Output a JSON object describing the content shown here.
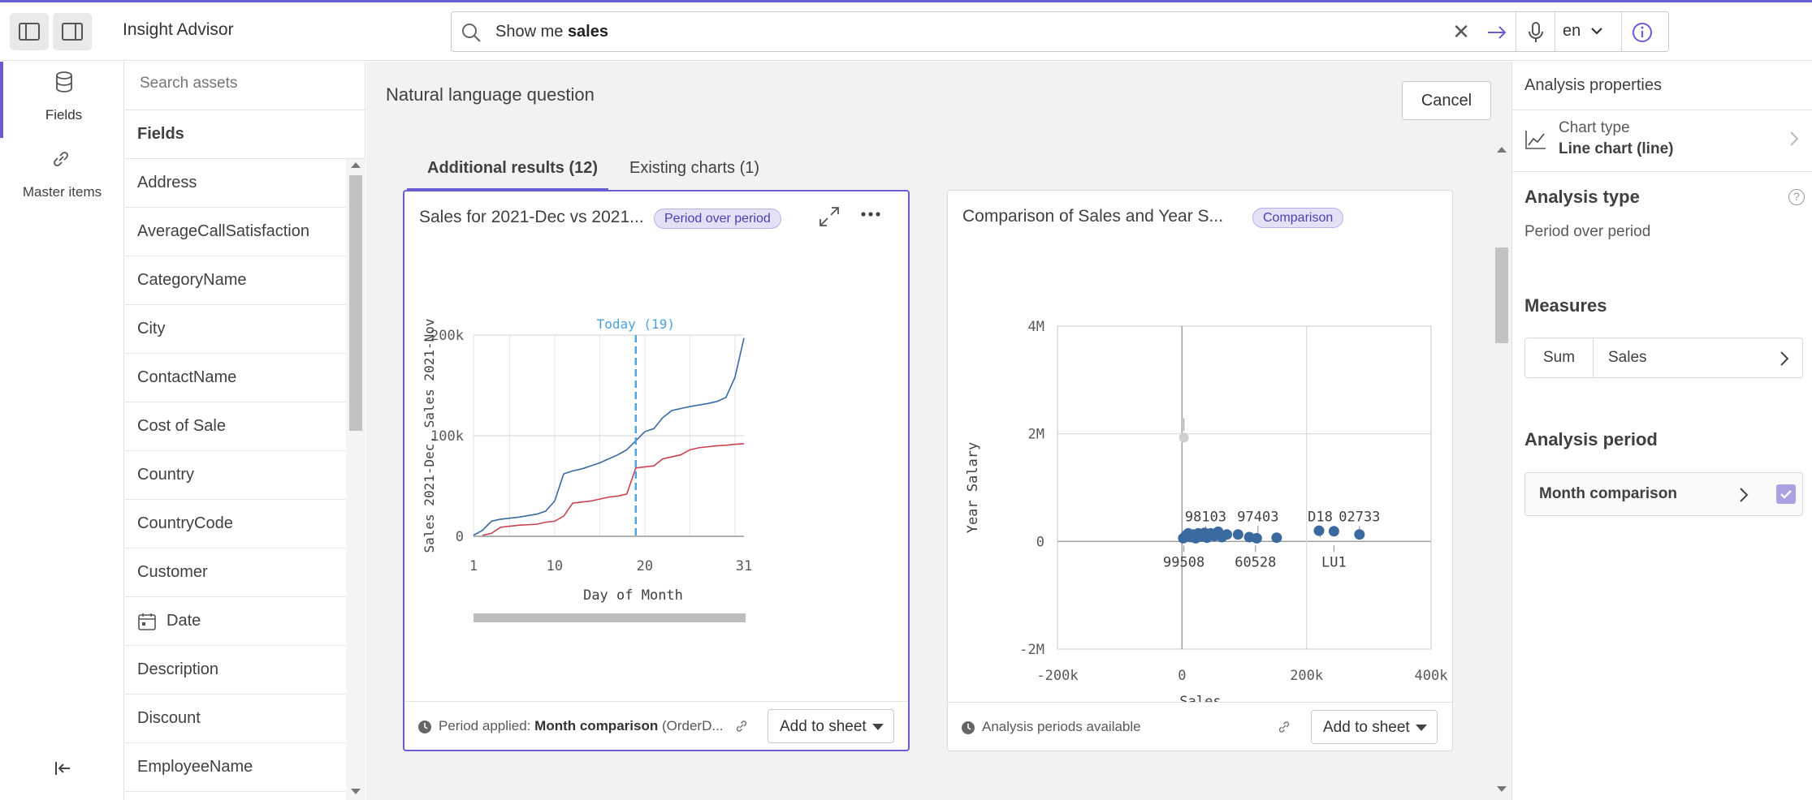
{
  "app": {
    "title": "Insight Advisor"
  },
  "search": {
    "query_prefix": "Show me ",
    "query_bold": "sales",
    "language": "en"
  },
  "rail": {
    "items": [
      {
        "label": "Fields"
      },
      {
        "label": "Master items"
      }
    ]
  },
  "assets": {
    "search_placeholder": "Search assets",
    "fields_header": "Fields",
    "fields": [
      "Address",
      "AverageCallSatisfaction",
      "CategoryName",
      "City",
      "ContactName",
      "Cost of Sale",
      "Country",
      "CountryCode",
      "Customer",
      "Date",
      "Description",
      "Discount",
      "EmployeeName"
    ]
  },
  "main": {
    "title": "Natural language question",
    "cancel_label": "Cancel",
    "tabs": [
      {
        "label": "Additional results (12)"
      },
      {
        "label": "Existing charts (1)"
      }
    ]
  },
  "cards": [
    {
      "title": "Sales for 2021-Dec vs 2021...",
      "badge": "Period over period",
      "footer_label": "Period applied:",
      "footer_bold": "Month comparison",
      "footer_rest": "(OrderD...",
      "add_label": "Add to sheet"
    },
    {
      "title": "Comparison of Sales and Year S...",
      "badge": "Comparison",
      "footer_label": "Analysis periods available",
      "add_label": "Add to sheet"
    }
  ],
  "chart_data": [
    {
      "type": "line",
      "xlabel": "Day of Month",
      "ylabel": "Sales 2021-Dec, Sales 2021-Nov",
      "x_ticks": [
        "1",
        "10",
        "20",
        "31"
      ],
      "y_ticks": [
        "0",
        "100k",
        "200k"
      ],
      "xlim": [
        1,
        31
      ],
      "ylim": [
        0,
        200000
      ],
      "reference_line": {
        "label": "Today (19)",
        "x": 19
      },
      "series": [
        {
          "color": "#3a6aa0",
          "x": [
            1,
            2,
            3,
            4,
            5,
            6,
            7,
            8,
            9,
            10,
            11,
            12,
            13,
            14,
            15,
            16,
            17,
            18,
            19,
            20,
            21,
            22,
            23,
            24,
            25,
            26,
            27,
            28,
            29,
            30,
            31
          ],
          "values": [
            1000,
            6000,
            15000,
            17000,
            18000,
            19000,
            20500,
            22000,
            25000,
            35000,
            62000,
            65000,
            67000,
            70000,
            73000,
            77000,
            81000,
            86000,
            95000,
            104000,
            107000,
            118000,
            125000,
            127000,
            129000,
            130500,
            132000,
            134000,
            138000,
            158000,
            197000
          ]
        },
        {
          "color": "#c9414f",
          "x": [
            2,
            3,
            4,
            5,
            6,
            7,
            8,
            9,
            10,
            11,
            12,
            13,
            14,
            15,
            16,
            17,
            18,
            19,
            20,
            21,
            22,
            23,
            24,
            25,
            26,
            27,
            28,
            29,
            30,
            31
          ],
          "values": [
            1000,
            3000,
            9000,
            10000,
            11000,
            11500,
            12000,
            14000,
            15000,
            20000,
            33000,
            34000,
            35000,
            37000,
            39000,
            40000,
            42000,
            68000,
            69000,
            70000,
            77000,
            79000,
            81000,
            86000,
            88000,
            89000,
            90000,
            90500,
            91500,
            92000
          ]
        }
      ]
    },
    {
      "type": "scatter",
      "xlabel": "Sales",
      "ylabel": "Year Salary",
      "x_ticks": [
        "-200k",
        "0",
        "200k",
        "400k"
      ],
      "y_ticks": [
        "-2M",
        "0",
        "2M",
        "4M"
      ],
      "xlim": [
        -200000,
        400000
      ],
      "ylim": [
        -2000000,
        4000000
      ],
      "point_color": "#3a6aa0",
      "labels": [
        {
          "text": "98103",
          "x": 38000,
          "y": 300000
        },
        {
          "text": "97403",
          "x": 122000,
          "y": 250000
        },
        {
          "text": "D18",
          "x": 222000,
          "y": 400000
        },
        {
          "text": "02733",
          "x": 285000,
          "y": 250000
        },
        {
          "text": "99508",
          "x": 3000,
          "y": -200000
        },
        {
          "text": "60528",
          "x": 118000,
          "y": -150000
        },
        {
          "text": "LU1",
          "x": 244000,
          "y": -100000
        }
      ],
      "points": [
        {
          "x": 3000,
          "y": 1930000,
          "muted": true
        },
        {
          "x": 2000,
          "y": 60000
        },
        {
          "x": 6000,
          "y": 110000
        },
        {
          "x": 10000,
          "y": 150000
        },
        {
          "x": 14000,
          "y": 80000
        },
        {
          "x": 18000,
          "y": 130000
        },
        {
          "x": 22000,
          "y": 60000
        },
        {
          "x": 26000,
          "y": 150000
        },
        {
          "x": 30000,
          "y": 90000
        },
        {
          "x": 36000,
          "y": 160000
        },
        {
          "x": 40000,
          "y": 70000
        },
        {
          "x": 46000,
          "y": 150000
        },
        {
          "x": 52000,
          "y": 100000
        },
        {
          "x": 58000,
          "y": 180000
        },
        {
          "x": 64000,
          "y": 80000
        },
        {
          "x": 72000,
          "y": 130000
        },
        {
          "x": 90000,
          "y": 130000
        },
        {
          "x": 108000,
          "y": 80000
        },
        {
          "x": 120000,
          "y": 60000
        },
        {
          "x": 152000,
          "y": 70000
        },
        {
          "x": 220000,
          "y": 200000
        },
        {
          "x": 244000,
          "y": 190000
        },
        {
          "x": 285000,
          "y": 130000
        }
      ]
    }
  ],
  "properties": {
    "title": "Analysis properties",
    "chart_type_label": "Chart type",
    "chart_type_value": "Line chart (line)",
    "analysis_type_header": "Analysis type",
    "analysis_type_value": "Period over period",
    "measures_header": "Measures",
    "measure_agg": "Sum",
    "measure_name": "Sales",
    "analysis_period_header": "Analysis period",
    "analysis_period_value": "Month comparison"
  },
  "colors": {
    "accent": "#6a5cd4",
    "series_dec": "#3a6aa0",
    "series_nov": "#c9414f",
    "reference_line": "#4aa3df"
  }
}
